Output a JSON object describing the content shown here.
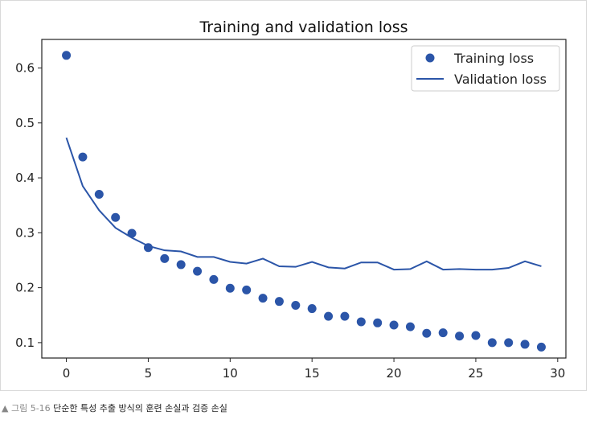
{
  "caption": {
    "marker": "▲",
    "label": "그림 5-16",
    "text": "단순한 특성 추출 방식의 훈련 손실과 검증 손실"
  },
  "colors": {
    "series": "#2b55a8",
    "axis": "#222222",
    "frame": "#d9d9d9"
  },
  "chart_data": {
    "type": "scatter",
    "title": "Training and validation loss",
    "xlabel": "",
    "ylabel": "",
    "xlim": [
      -1.5,
      30.5
    ],
    "ylim": [
      0.072,
      0.652
    ],
    "xticks": [
      0,
      5,
      10,
      15,
      20,
      25,
      30
    ],
    "yticks": [
      0.1,
      0.2,
      0.3,
      0.4,
      0.5,
      0.6
    ],
    "grid": false,
    "legend_position": "top-right",
    "x": [
      0,
      1,
      2,
      3,
      4,
      5,
      6,
      7,
      8,
      9,
      10,
      11,
      12,
      13,
      14,
      15,
      16,
      17,
      18,
      19,
      20,
      21,
      22,
      23,
      24,
      25,
      26,
      27,
      28,
      29
    ],
    "series": [
      {
        "name": "Training loss",
        "style": "markers",
        "values": [
          0.623,
          0.438,
          0.37,
          0.328,
          0.299,
          0.273,
          0.253,
          0.242,
          0.23,
          0.215,
          0.199,
          0.196,
          0.181,
          0.175,
          0.168,
          0.162,
          0.148,
          0.148,
          0.138,
          0.136,
          0.132,
          0.129,
          0.117,
          0.118,
          0.112,
          0.113,
          0.1,
          0.1,
          0.097,
          0.092
        ]
      },
      {
        "name": "Validation loss",
        "style": "line",
        "values": [
          0.473,
          0.385,
          0.341,
          0.309,
          0.291,
          0.276,
          0.268,
          0.266,
          0.256,
          0.256,
          0.247,
          0.244,
          0.253,
          0.239,
          0.238,
          0.247,
          0.237,
          0.235,
          0.246,
          0.246,
          0.233,
          0.234,
          0.248,
          0.233,
          0.234,
          0.233,
          0.233,
          0.236,
          0.248,
          0.239
        ]
      }
    ]
  }
}
